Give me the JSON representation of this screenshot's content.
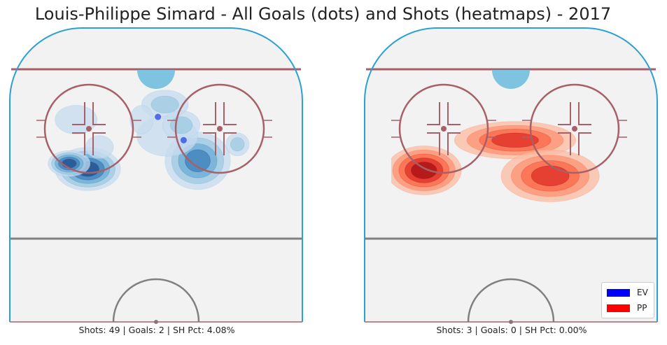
{
  "chart_data": {
    "type": "heatmap",
    "title": "Louis-Philippe Simard - All Goals (dots) and Shots (heatmaps) - 2017",
    "legend": {
      "placement": "bottom-right",
      "entries": [
        {
          "label": "EV",
          "color": "#0000ff"
        },
        {
          "label": "PP",
          "color": "#ff0000"
        }
      ]
    },
    "panels": [
      {
        "id": "ev",
        "strength": "EV",
        "caption": "Shots: 49 | Goals: 2 | SH Pct: 4.08%",
        "shots": 49,
        "goals": 2,
        "sh_pct": 4.08,
        "colors": [
          "#c6dbef",
          "#9ecae1",
          "#6baed6",
          "#3f7fb8",
          "#1f4e8c"
        ],
        "goal_color": "#2546e8",
        "goal_points": [
          [
            0.52,
            0.24
          ],
          [
            0.63,
            0.41
          ]
        ],
        "shot_blobs": [
          [
            0.22,
            0.62,
            0.14,
            0.075,
            1.0,
            5
          ],
          [
            0.14,
            0.58,
            0.09,
            0.045,
            0.7,
            5
          ],
          [
            0.55,
            0.15,
            0.1,
            0.05,
            0.5,
            2
          ],
          [
            0.17,
            0.26,
            0.09,
            0.05,
            0.45,
            1
          ],
          [
            0.69,
            0.56,
            0.14,
            0.1,
            0.75,
            4
          ],
          [
            0.56,
            0.38,
            0.13,
            0.07,
            0.35,
            1
          ],
          [
            0.62,
            0.3,
            0.08,
            0.05,
            0.4,
            2
          ],
          [
            0.86,
            0.44,
            0.05,
            0.04,
            0.45,
            2
          ],
          [
            0.27,
            0.46,
            0.06,
            0.04,
            0.45,
            1
          ],
          [
            0.45,
            0.26,
            0.05,
            0.05,
            0.3,
            1
          ]
        ]
      },
      {
        "id": "pp",
        "strength": "PP",
        "caption": "Shots: 3 | Goals: 0 | SH Pct: 0.00%",
        "shots": 3,
        "goals": 0,
        "sh_pct": 0.0,
        "colors": [
          "#fcbba1",
          "#fc9272",
          "#fb6a4a",
          "#de2d26",
          "#a50f15"
        ],
        "goal_color": "#2546e8",
        "goal_points": [],
        "shot_blobs": [
          [
            0.53,
            0.41,
            0.26,
            0.065,
            1.0,
            4
          ],
          [
            0.14,
            0.63,
            0.16,
            0.085,
            1.0,
            5
          ],
          [
            0.68,
            0.67,
            0.21,
            0.09,
            1.0,
            4
          ]
        ]
      }
    ]
  }
}
